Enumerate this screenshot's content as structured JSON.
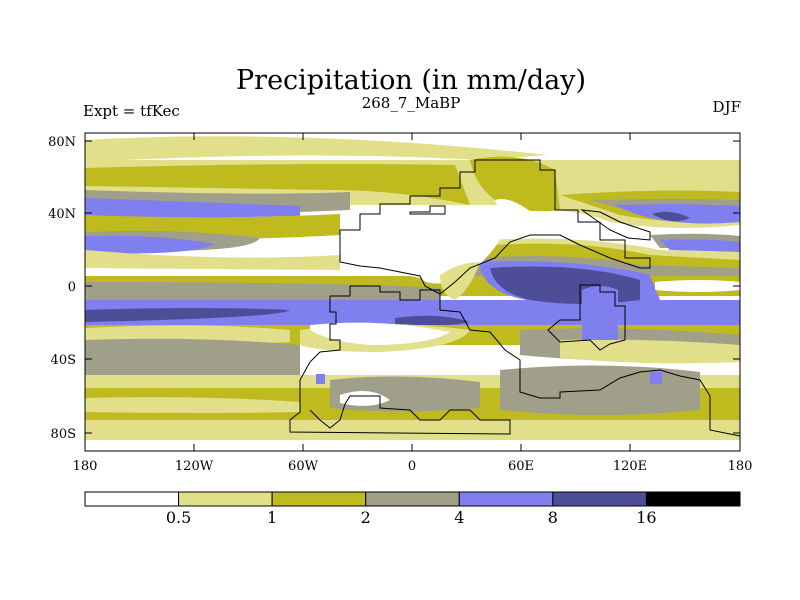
{
  "title": "Precipitation (in mm/day)",
  "subtitle_left": "Expt = tfKec",
  "subtitle_center": "268_7_MaBP",
  "subtitle_right": "DJF",
  "x_ticks": [
    "180",
    "120W",
    "60W",
    "0",
    "60E",
    "120E",
    "180"
  ],
  "y_ticks": [
    "80N",
    "40N",
    "0",
    "40S",
    "80S"
  ],
  "colorbar": {
    "colors": [
      "#ffffff",
      "#e2df8a",
      "#bfbb1e",
      "#a09f8a",
      "#7f7ff0",
      "#4e4e98",
      "#000000"
    ],
    "labels": [
      "0.5",
      "1",
      "2",
      "4",
      "8",
      "16"
    ]
  },
  "chart_data": {
    "type": "heatmap",
    "title": "Precipitation (in mm/day)",
    "variable": "Precipitation",
    "units": "mm/day",
    "experiment": "tfKec",
    "period": "268_7_MaBP",
    "season": "DJF",
    "x_range": [
      -180,
      180
    ],
    "y_range": [
      -90,
      90
    ],
    "contour_levels": [
      0.5,
      1,
      2,
      4,
      8,
      16
    ],
    "colors": {
      "below_0.5": "#ffffff",
      "0.5-1": "#e2df8a",
      "1-2": "#bfbb1e",
      "2-4": "#a09f8a",
      "4-8": "#7f7ff0",
      "8-16": "#4e4e98",
      "above_16": "#000000"
    }
  }
}
